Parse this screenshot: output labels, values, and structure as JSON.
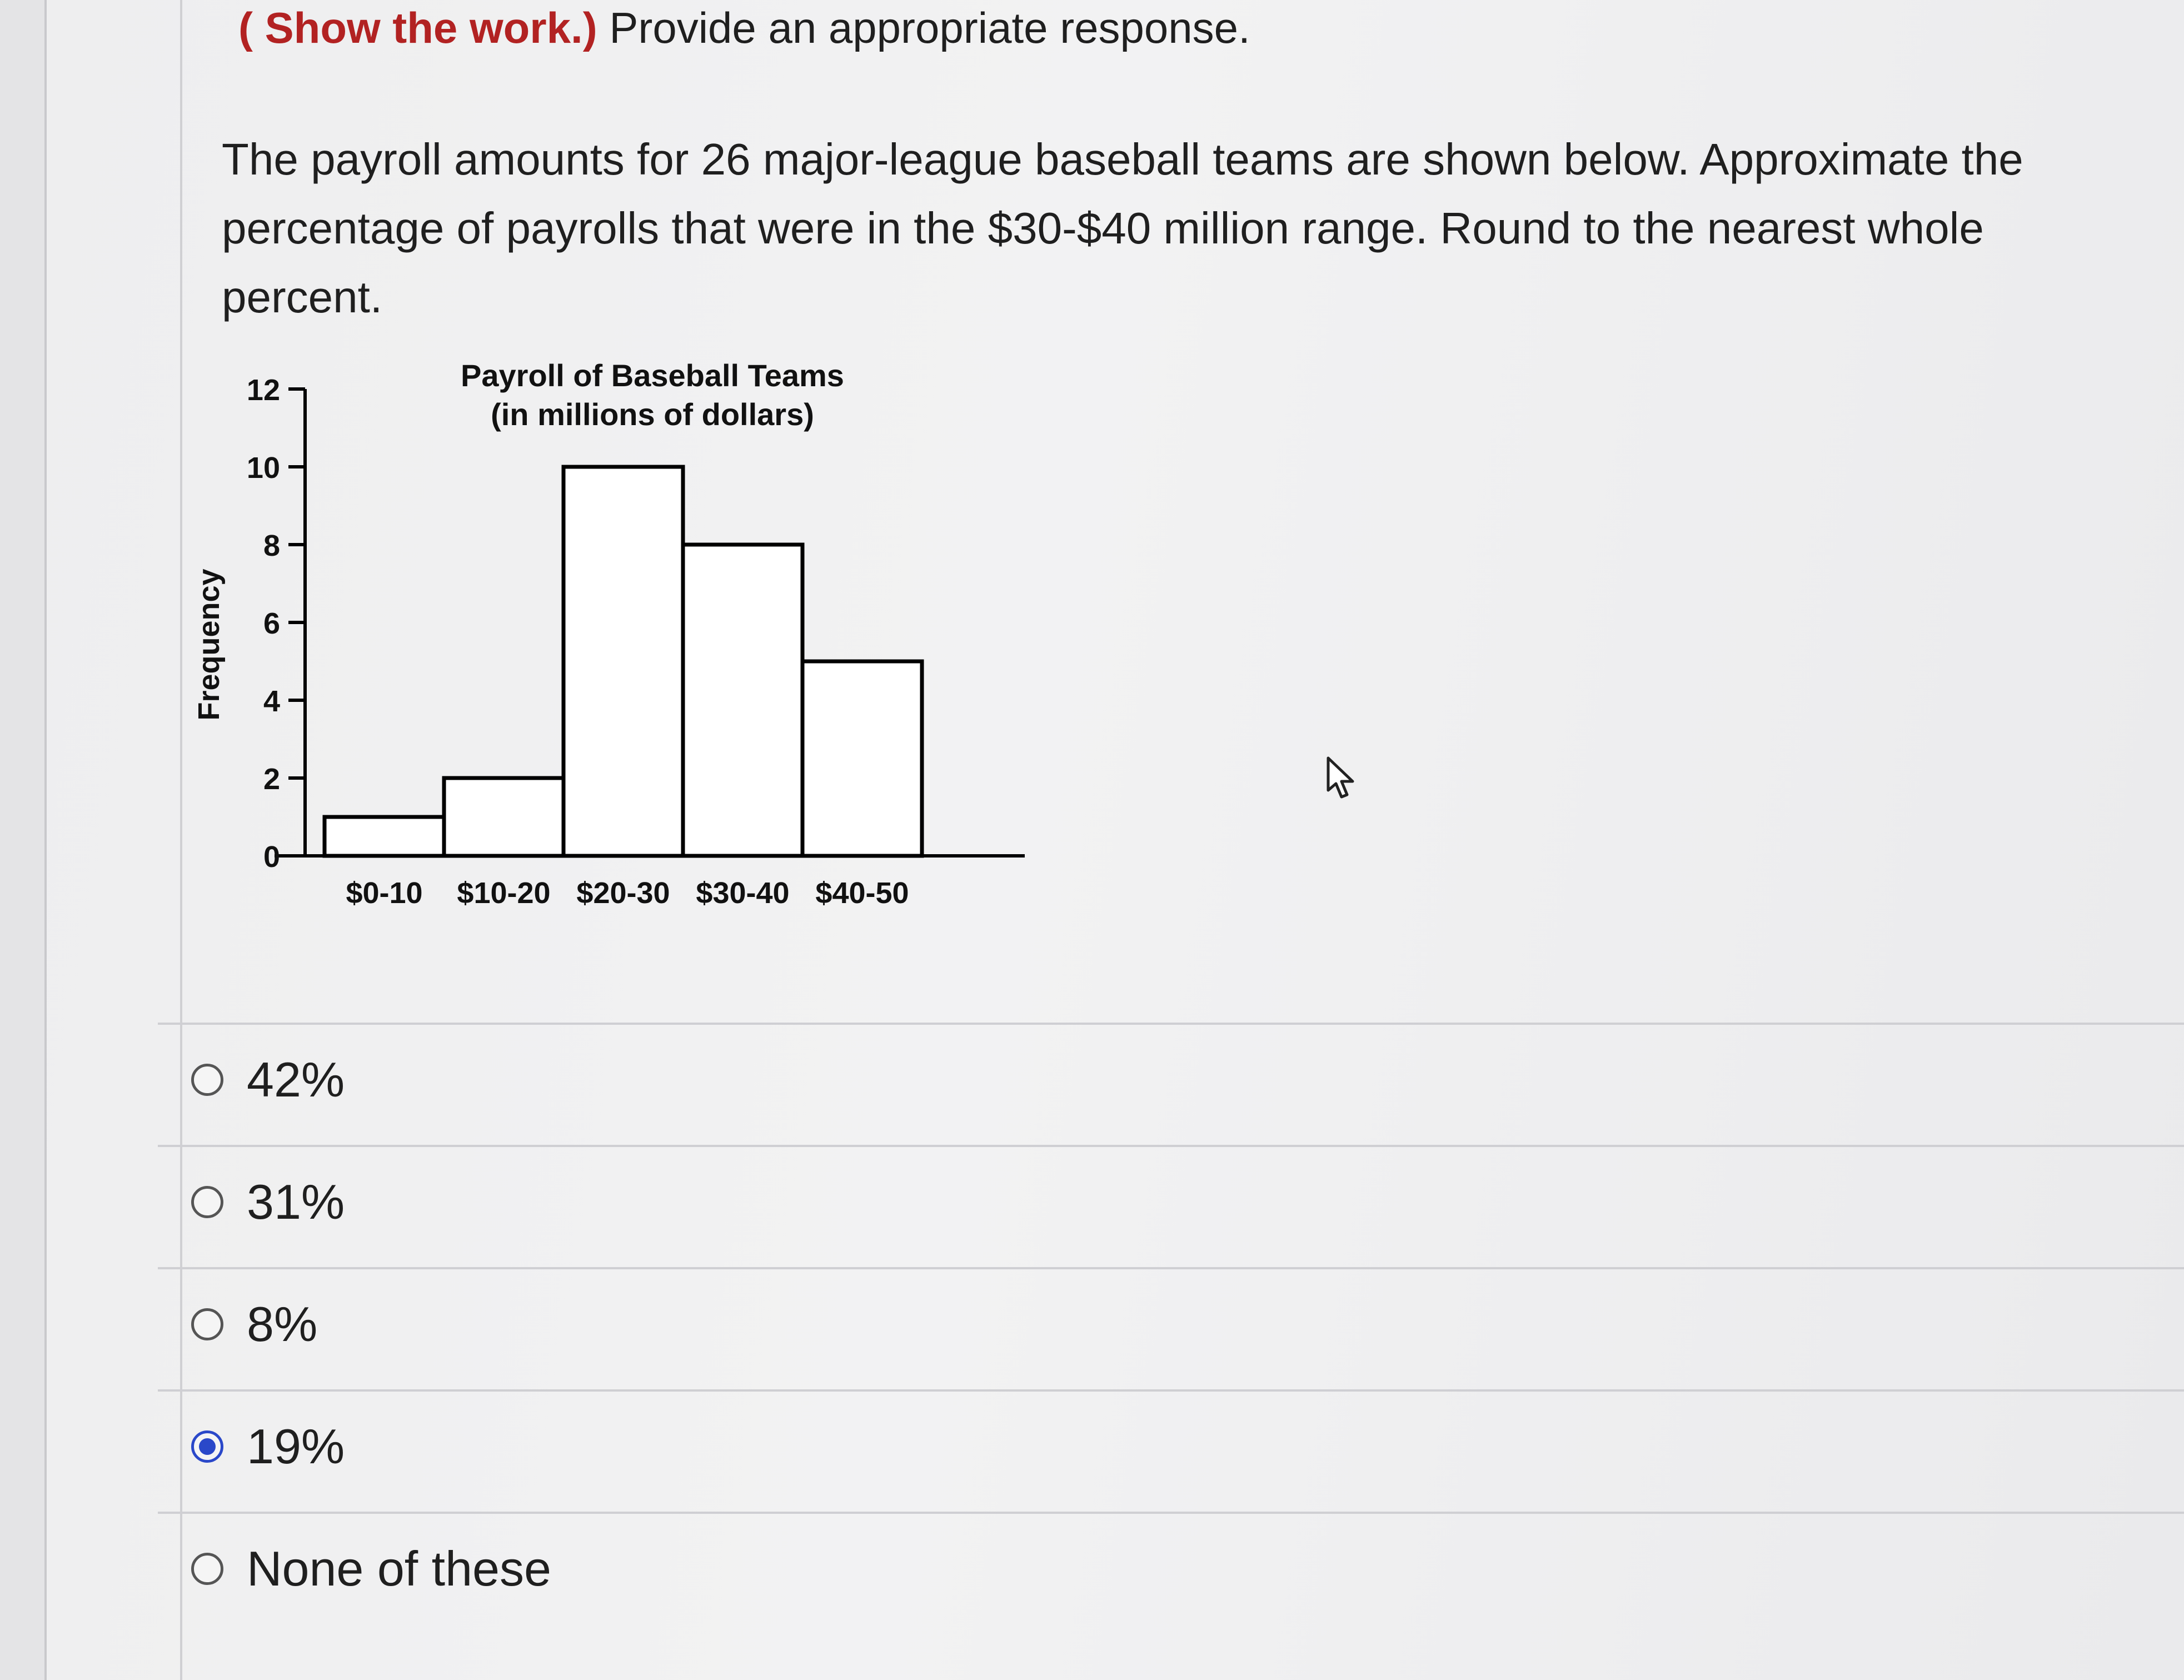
{
  "instructions": {
    "prefix": "( Show the work.)",
    "text": " Provide an appropriate response."
  },
  "question": {
    "text": "The payroll amounts for 26 major-league baseball teams are shown below. Approximate the percentage of payrolls that were in the $30-$40 million range. Round to the nearest whole percent."
  },
  "chart_data": {
    "type": "bar",
    "title": "Payroll of Baseball Teams",
    "subtitle": "(in millions of dollars)",
    "ylabel": "Frequency",
    "xlabel": "",
    "categories": [
      "$0-10",
      "$10-20",
      "$20-30",
      "$30-40",
      "$40-50"
    ],
    "values": [
      1,
      2,
      10,
      8,
      5
    ],
    "ylim": [
      0,
      12
    ],
    "yticks": [
      0,
      2,
      4,
      6,
      8,
      10,
      12
    ],
    "grid": false,
    "bar_fill": "#ffffff",
    "bar_stroke": "#000000"
  },
  "options": [
    {
      "label": "42%",
      "selected": false
    },
    {
      "label": "31%",
      "selected": false
    },
    {
      "label": "8%",
      "selected": false
    },
    {
      "label": "19%",
      "selected": true
    },
    {
      "label": "None of these",
      "selected": false
    }
  ],
  "colors": {
    "accent": "#2a48c9",
    "instruction_red": "#b22222"
  }
}
